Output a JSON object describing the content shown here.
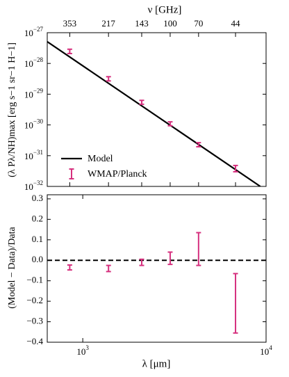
{
  "chart_data": [
    {
      "type": "errorbar-line",
      "ylabel": "(λ Pλ/NH)max [erg s−1 sr−1 H−1]",
      "x2label": "ν [GHz]",
      "x2ticks": [
        353,
        217,
        143,
        100,
        70,
        44
      ],
      "log_x": true,
      "log_y": true,
      "xlim": [
        640,
        10000
      ],
      "ylim": [
        1e-32,
        1e-27
      ],
      "yticks": [
        {
          "value": 1e-32,
          "label": "10",
          "exponent": "−32"
        },
        {
          "value": 1e-31,
          "label": "10",
          "exponent": "−31"
        },
        {
          "value": 1e-30,
          "label": "10",
          "exponent": "−30"
        },
        {
          "value": 1e-29,
          "label": "10",
          "exponent": "−29"
        },
        {
          "value": 1e-28,
          "label": "10",
          "exponent": "−28"
        },
        {
          "value": 1e-27,
          "label": "10",
          "exponent": "−27"
        }
      ],
      "legend": "lower left",
      "series": [
        {
          "name": "Model",
          "color": "#000000",
          "x": [
            640,
            9300
          ],
          "values": [
            5.1e-28,
            1e-32
          ]
        },
        {
          "name": "WMAP/Planck",
          "color": "#d6307e",
          "x": [
            849,
            1382,
            2097,
            2998,
            4283,
            6813
          ],
          "values": [
            2.5e-28,
            3.2e-29,
            5.5e-30,
            1.1e-30,
            2.3e-31,
            3.9e-32
          ],
          "errors": [
            4e-29,
            5e-30,
            8e-31,
            1.6e-31,
            3.5e-32,
            9e-33
          ]
        }
      ]
    },
    {
      "type": "errorbar",
      "ylabel": "(Model − Data)/Data",
      "xlabel": "λ [μm]",
      "log_x": true,
      "xlim": [
        640,
        10000
      ],
      "ylim": [
        -0.4,
        0.32
      ],
      "xticks": [
        {
          "value": 1000,
          "label": "10",
          "exponent": "3"
        },
        {
          "value": 10000,
          "label": "10",
          "exponent": "4"
        }
      ],
      "yticks": [
        {
          "value": -0.4,
          "label": "−0.4"
        },
        {
          "value": -0.3,
          "label": "−0.3"
        },
        {
          "value": -0.2,
          "label": "−0.2"
        },
        {
          "value": -0.1,
          "label": "−0.1"
        },
        {
          "value": 0,
          "label": "0.0"
        },
        0.1,
        0.2,
        0.3
      ],
      "reference_line": 0,
      "series": [
        {
          "color": "#d6307e",
          "x": [
            849,
            1382,
            2097,
            2998,
            4283,
            6813
          ],
          "values": [
            -0.035,
            -0.04,
            -0.01,
            0.01,
            0.055,
            -0.21
          ],
          "errors": [
            0.012,
            0.015,
            0.015,
            0.03,
            0.08,
            0.145
          ]
        }
      ]
    }
  ]
}
